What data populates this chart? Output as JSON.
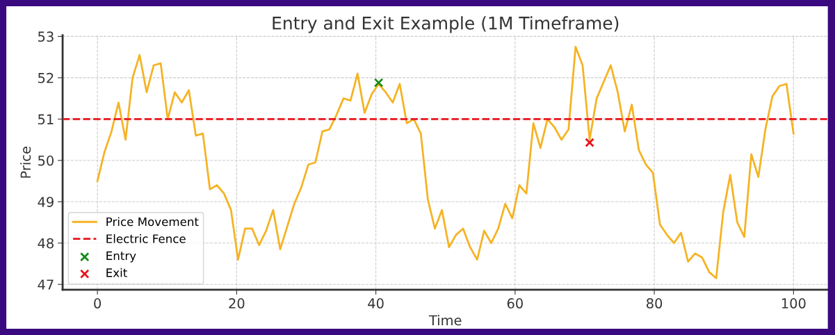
{
  "chart_data": {
    "type": "line",
    "title": "Entry and Exit Example (1M Timeframe)",
    "xlabel": "Time",
    "ylabel": "Price",
    "series": [
      {
        "name": "Price Movement",
        "color": "#f5b324",
        "marker": "none",
        "line_style": "solid",
        "x": [
          0,
          1.01,
          2.02,
          3.03,
          4.04,
          5.05,
          6.06,
          7.07,
          8.08,
          9.09,
          10.1,
          11.11,
          12.12,
          13.13,
          14.14,
          15.15,
          16.16,
          17.17,
          18.18,
          19.19,
          20.2,
          21.21,
          22.22,
          23.23,
          24.24,
          25.25,
          26.26,
          27.27,
          28.28,
          29.29,
          30.3,
          31.31,
          32.32,
          33.33,
          34.34,
          35.35,
          36.36,
          37.37,
          38.38,
          39.39,
          40.4,
          41.41,
          42.42,
          43.43,
          44.44,
          45.45,
          46.46,
          47.47,
          48.48,
          49.49,
          50.51,
          51.52,
          52.53,
          53.54,
          54.55,
          55.56,
          56.57,
          57.58,
          58.59,
          59.6,
          60.61,
          61.62,
          62.63,
          63.64,
          64.65,
          65.66,
          66.67,
          67.68,
          68.69,
          69.7,
          70.71,
          71.72,
          72.73,
          73.74,
          74.75,
          75.76,
          76.77,
          77.78,
          78.79,
          79.8,
          80.81,
          81.82,
          82.83,
          83.84,
          84.85,
          85.86,
          86.87,
          87.88,
          88.89,
          89.9,
          90.91,
          91.92,
          92.93,
          93.94,
          94.95,
          95.96,
          96.97,
          97.98,
          98.99,
          100
        ],
        "values": [
          49.5,
          50.2,
          50.7,
          51.4,
          50.5,
          52.0,
          52.55,
          51.65,
          52.3,
          52.35,
          51.0,
          51.65,
          51.4,
          51.7,
          50.6,
          50.65,
          49.3,
          49.4,
          49.2,
          48.8,
          47.6,
          48.35,
          48.35,
          47.95,
          48.3,
          48.8,
          47.85,
          48.4,
          48.95,
          49.35,
          49.9,
          49.95,
          50.7,
          50.75,
          51.1,
          51.5,
          51.45,
          52.1,
          51.15,
          51.6,
          51.85,
          51.65,
          51.4,
          51.85,
          50.9,
          51.0,
          50.65,
          49.05,
          48.35,
          48.8,
          47.9,
          48.2,
          48.35,
          47.9,
          47.6,
          48.3,
          48.0,
          48.35,
          48.95,
          48.6,
          49.4,
          49.2,
          50.9,
          50.3,
          51.0,
          50.8,
          50.5,
          50.75,
          52.75,
          52.3,
          50.5,
          51.5,
          51.9,
          52.3,
          51.65,
          50.7,
          51.35,
          50.25,
          49.9,
          49.7,
          48.45,
          48.2,
          48.0,
          48.25,
          47.55,
          47.75,
          47.65,
          47.3,
          47.15,
          48.75,
          49.65,
          48.5,
          48.15,
          50.15,
          49.6,
          50.75,
          51.55,
          51.8,
          51.85,
          50.65
        ]
      },
      {
        "name": "Entry",
        "type": "scatter",
        "color": "#138a13",
        "marker": "cross",
        "x": [
          40.4
        ],
        "values": [
          51.88
        ]
      },
      {
        "name": "Exit",
        "type": "scatter",
        "color": "#e8141c",
        "marker": "cross",
        "x": [
          70.71
        ],
        "values": [
          50.43
        ]
      }
    ],
    "ref_lines": [
      {
        "axis": "y",
        "value": 51,
        "label": "Electric Fence",
        "color": "#e8141c",
        "line_style": "dashed"
      }
    ],
    "xlim": [
      -5,
      105
    ],
    "xticks": [
      0,
      20,
      40,
      60,
      80,
      100
    ],
    "ylim": [
      46.87,
      53.03
    ],
    "yticks": [
      47,
      48,
      49,
      50,
      51,
      52,
      53
    ],
    "grid": true,
    "legend": "bottom left"
  }
}
